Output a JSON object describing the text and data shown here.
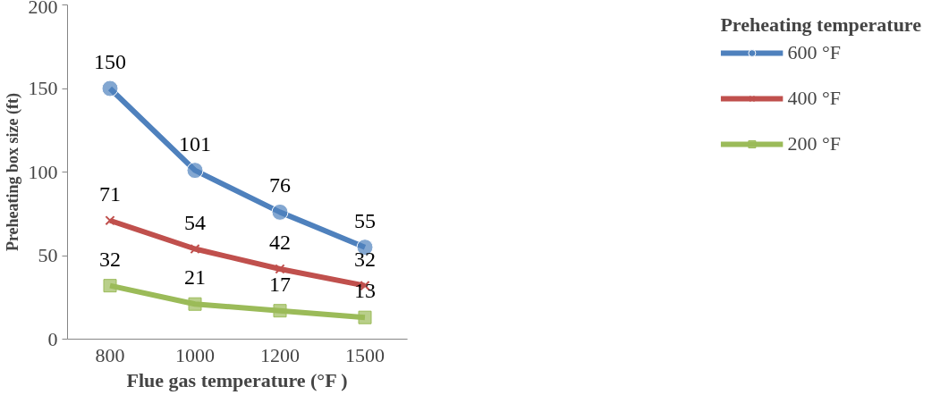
{
  "chart_data": {
    "type": "line",
    "xlabel": "Flue gas temperature (°F )",
    "ylabel": "Preheating box size (ft)",
    "legend_title": "Preheating temperature",
    "categories": [
      "800",
      "1000",
      "1200",
      "1500"
    ],
    "series": [
      {
        "name": "600 °F",
        "color": "#4f81bd",
        "marker": "circle",
        "values": [
          150,
          101,
          76,
          55
        ]
      },
      {
        "name": "400 °F",
        "color": "#c0504d",
        "marker": "cross",
        "values": [
          71,
          54,
          42,
          32
        ]
      },
      {
        "name": "200 °F",
        "color": "#9bbb59",
        "marker": "square",
        "values": [
          32,
          21,
          17,
          13
        ]
      }
    ],
    "ylim": [
      0,
      200
    ],
    "yticks": [
      0,
      50,
      100,
      150,
      200
    ],
    "grid": false,
    "legend": "right",
    "data_labels": true
  }
}
